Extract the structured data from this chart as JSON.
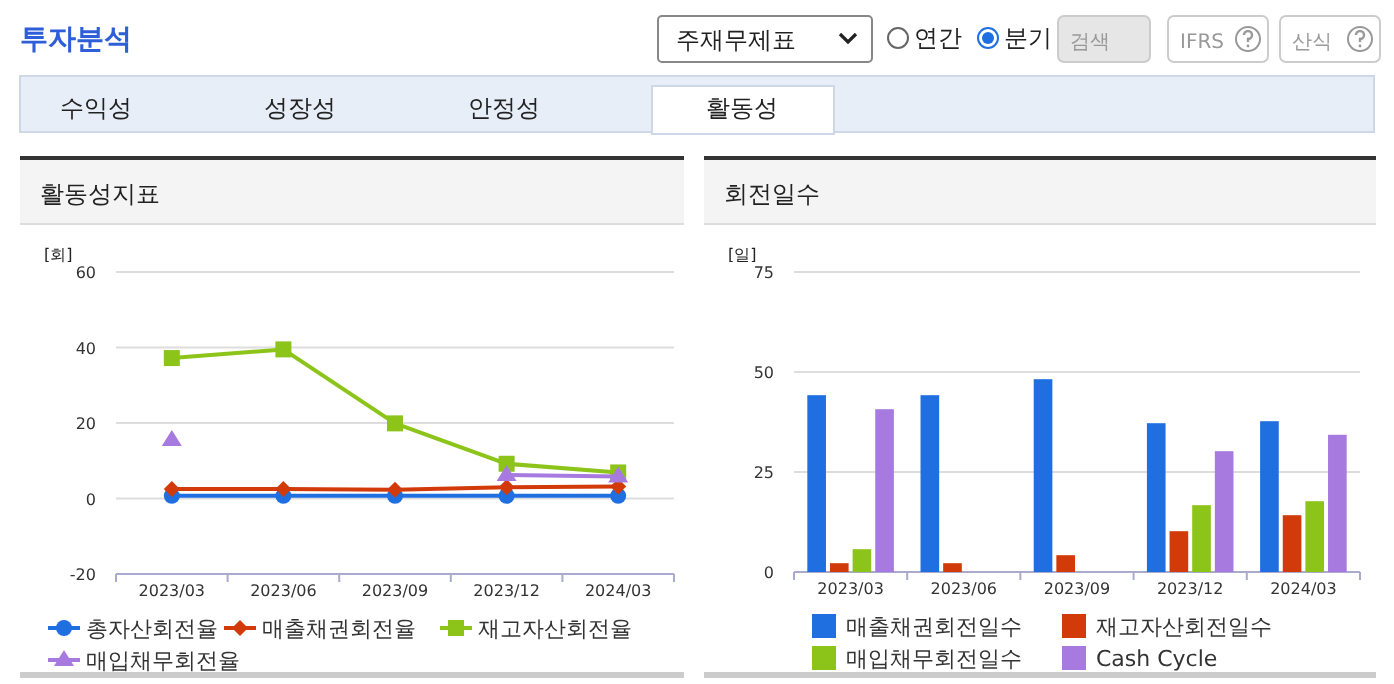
{
  "chart_data": [
    {
      "type": "line",
      "title": "활동성지표",
      "ylabel": "[회]",
      "categories": [
        "2023/03",
        "2023/06",
        "2023/09",
        "2023/12",
        "2024/03"
      ],
      "ylim": [
        -20,
        60
      ],
      "yticks": [
        -20,
        0,
        20,
        40,
        60
      ],
      "grid": "y",
      "legend": "bottom",
      "annotations": [
        "투자분석",
        "주재무제표",
        "연간",
        "분기",
        "검색",
        "IFRS",
        "산식",
        "수익성",
        "성장성",
        "안정성",
        "활동성"
      ],
      "series": [
        {
          "name": "총자산회전율",
          "color": "#1f6fe0",
          "marker": "circle",
          "values": [
            0.7,
            0.7,
            0.7,
            0.7,
            0.7
          ]
        },
        {
          "name": "매출채권회전율",
          "color": "#d23a0a",
          "marker": "diamond",
          "values": [
            2.5,
            2.5,
            2.3,
            3.0,
            3.2
          ]
        },
        {
          "name": "재고자산회전율",
          "color": "#8cc41a",
          "marker": "square",
          "values": [
            37.2,
            39.5,
            19.9,
            9.2,
            6.9
          ]
        },
        {
          "name": "매입채무회전율",
          "color": "#a77ae0",
          "marker": "triangle",
          "values": [
            15.5,
            null,
            null,
            6.2,
            5.8
          ]
        }
      ]
    },
    {
      "type": "bar",
      "title": "회전일수",
      "ylabel": "[일]",
      "categories": [
        "2023/03",
        "2023/06",
        "2023/09",
        "2023/12",
        "2024/03"
      ],
      "ylim": [
        0,
        75
      ],
      "yticks": [
        0,
        25,
        50,
        75
      ],
      "grid": "y",
      "legend": "bottom",
      "series": [
        {
          "name": "매출채권회전일수",
          "color": "#1f6fe0",
          "values": [
            44.2,
            44.2,
            48.2,
            37.2,
            37.7
          ]
        },
        {
          "name": "재고자산회전일수",
          "color": "#d23a0a",
          "values": [
            2.2,
            2.2,
            4.2,
            10.2,
            14.2
          ]
        },
        {
          "name": "매입채무회전일수",
          "color": "#8cc41a",
          "values": [
            5.7,
            null,
            null,
            16.7,
            17.7
          ]
        },
        {
          "name": "Cash Cycle",
          "color": "#a77ae0",
          "values": [
            40.7,
            null,
            null,
            30.2,
            34.3
          ]
        }
      ]
    }
  ]
}
